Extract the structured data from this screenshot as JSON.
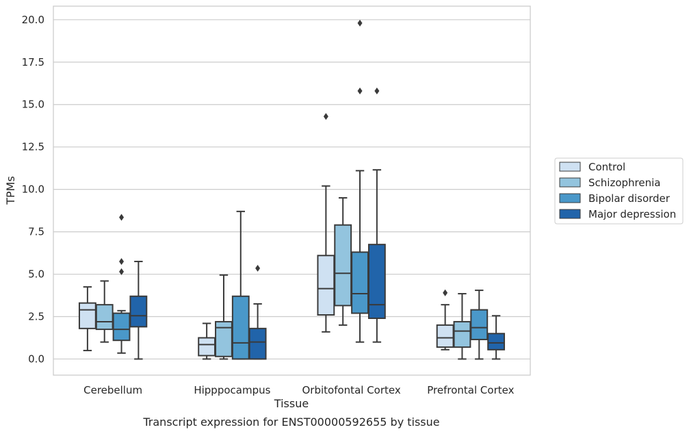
{
  "chart_data": {
    "type": "box",
    "caption": "Transcript expression for ENST00000592655 by tissue",
    "xlabel": "Tissue",
    "ylabel": "TPMs",
    "ylim": [
      -0.95,
      20.8
    ],
    "yticks": [
      "0.0",
      "2.5",
      "5.0",
      "7.5",
      "10.0",
      "12.5",
      "15.0",
      "17.5",
      "20.0"
    ],
    "ytick_values": [
      0,
      2.5,
      5,
      7.5,
      10,
      12.5,
      15,
      17.5,
      20
    ],
    "categories": [
      "Cerebellum",
      "Hipppocampus",
      "Orbitofontal Cortex",
      "Prefrontal Cortex"
    ],
    "grid": "horizontal",
    "legend_position": "right",
    "series": [
      {
        "name": "Control",
        "color": "#cfe1f2",
        "boxes": [
          {
            "whislo": 0.5,
            "q1": 1.8,
            "med": 2.9,
            "q3": 3.3,
            "whishi": 4.25,
            "fliers": []
          },
          {
            "whislo": 0.0,
            "q1": 0.2,
            "med": 0.85,
            "q3": 1.25,
            "whishi": 2.1,
            "fliers": []
          },
          {
            "whislo": 1.6,
            "q1": 2.6,
            "med": 4.15,
            "q3": 6.1,
            "whishi": 10.2,
            "fliers": [
              14.3
            ]
          },
          {
            "whislo": 0.55,
            "q1": 0.7,
            "med": 1.25,
            "q3": 2.0,
            "whishi": 3.2,
            "fliers": [
              3.9
            ]
          }
        ]
      },
      {
        "name": "Schizophrenia",
        "color": "#93c4de",
        "boxes": [
          {
            "whislo": 1.0,
            "q1": 1.75,
            "med": 2.2,
            "q3": 3.2,
            "whishi": 4.6,
            "fliers": []
          },
          {
            "whislo": 0.0,
            "q1": 0.15,
            "med": 1.85,
            "q3": 2.2,
            "whishi": 4.95,
            "fliers": []
          },
          {
            "whislo": 2.0,
            "q1": 3.15,
            "med": 5.05,
            "q3": 7.9,
            "whishi": 9.5,
            "fliers": []
          },
          {
            "whislo": 0.0,
            "q1": 0.7,
            "med": 1.65,
            "q3": 2.2,
            "whishi": 3.85,
            "fliers": []
          }
        ]
      },
      {
        "name": "Bipolar disorder",
        "color": "#4a98c9",
        "boxes": [
          {
            "whislo": 0.35,
            "q1": 1.1,
            "med": 1.75,
            "q3": 2.7,
            "whishi": 2.85,
            "fliers": [
              5.15,
              5.75,
              8.35
            ]
          },
          {
            "whislo": 0.0,
            "q1": 0.0,
            "med": 0.95,
            "q3": 3.7,
            "whishi": 8.7,
            "fliers": []
          },
          {
            "whislo": 1.0,
            "q1": 2.7,
            "med": 3.85,
            "q3": 6.3,
            "whishi": 11.1,
            "fliers": [
              15.8,
              19.8
            ]
          },
          {
            "whislo": 0.0,
            "q1": 1.15,
            "med": 1.85,
            "q3": 2.9,
            "whishi": 4.05,
            "fliers": []
          }
        ]
      },
      {
        "name": "Major depression",
        "color": "#2164aa",
        "boxes": [
          {
            "whislo": 0.0,
            "q1": 1.9,
            "med": 2.55,
            "q3": 3.7,
            "whishi": 5.75,
            "fliers": []
          },
          {
            "whislo": 0.0,
            "q1": 0.0,
            "med": 1.0,
            "q3": 1.8,
            "whishi": 3.25,
            "fliers": [
              5.35
            ]
          },
          {
            "whislo": 1.0,
            "q1": 2.4,
            "med": 3.2,
            "q3": 6.75,
            "whishi": 11.15,
            "fliers": [
              15.8
            ]
          },
          {
            "whislo": 0.0,
            "q1": 0.55,
            "med": 0.95,
            "q3": 1.5,
            "whishi": 2.55,
            "fliers": []
          }
        ]
      }
    ]
  }
}
